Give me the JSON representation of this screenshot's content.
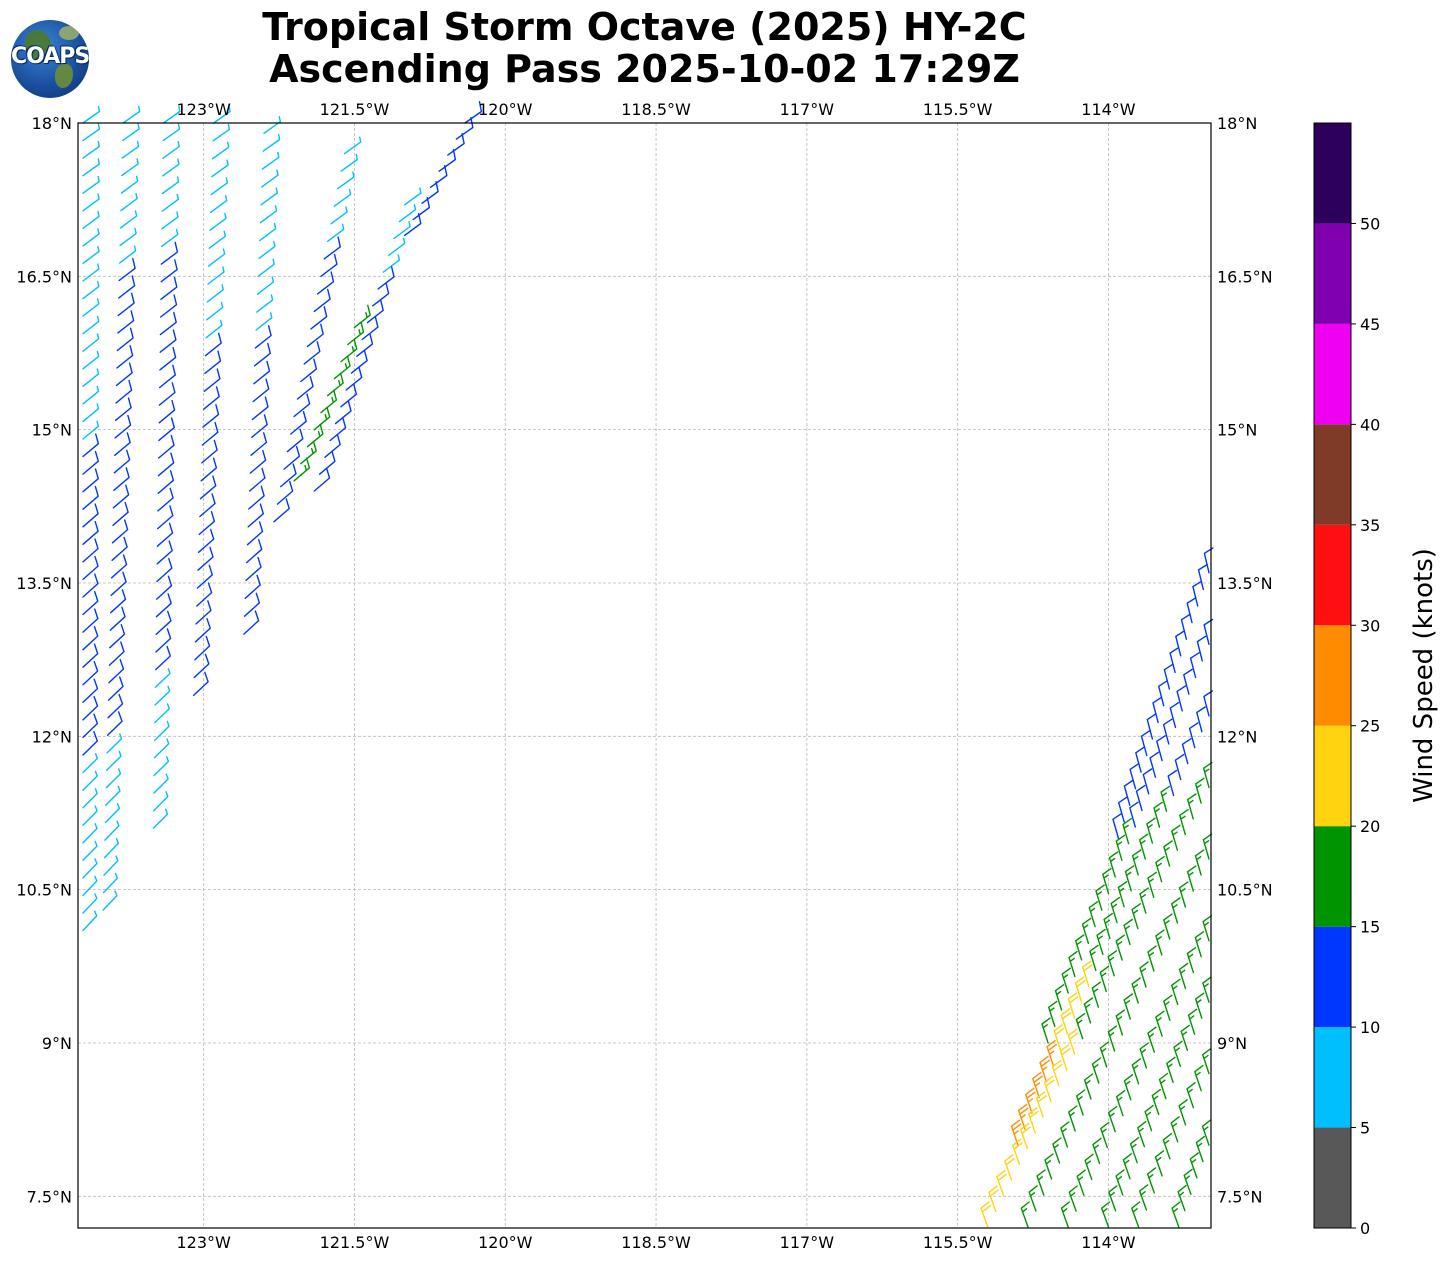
{
  "title": {
    "line1": "Tropical Storm Octave (2025) HY-2C",
    "line2": "Ascending Pass 2025-10-02 17:29Z"
  },
  "logo": {
    "text": "COAPS"
  },
  "map": {
    "lon_range": [
      -124.25,
      -112.98
    ],
    "lat_range": [
      7.19,
      18.0
    ],
    "lon_ticks": [
      {
        "value": -123.0,
        "label": "123°W"
      },
      {
        "value": -121.5,
        "label": "121.5°W"
      },
      {
        "value": -120.0,
        "label": "120°W"
      },
      {
        "value": -118.5,
        "label": "118.5°W"
      },
      {
        "value": -117.0,
        "label": "117°W"
      },
      {
        "value": -115.5,
        "label": "115.5°W"
      },
      {
        "value": -114.0,
        "label": "114°W"
      }
    ],
    "lat_ticks": [
      {
        "value": 18.0,
        "label": "18°N"
      },
      {
        "value": 16.5,
        "label": "16.5°N"
      },
      {
        "value": 15.0,
        "label": "15°N"
      },
      {
        "value": 13.5,
        "label": "13.5°N"
      },
      {
        "value": 12.0,
        "label": "12°N"
      },
      {
        "value": 10.5,
        "label": "10.5°N"
      },
      {
        "value": 9.0,
        "label": "9°N"
      },
      {
        "value": 7.5,
        "label": "7.5°N"
      }
    ],
    "grid": true
  },
  "colorbar": {
    "label": "Wind Speed (knots)",
    "range": [
      0,
      55
    ],
    "bins": [
      {
        "from": 0,
        "to": 5,
        "color": "#585858"
      },
      {
        "from": 5,
        "to": 10,
        "color": "#00bfff"
      },
      {
        "from": 10,
        "to": 15,
        "color": "#0037ff"
      },
      {
        "from": 15,
        "to": 20,
        "color": "#009400"
      },
      {
        "from": 20,
        "to": 25,
        "color": "#ffd30f"
      },
      {
        "from": 25,
        "to": 30,
        "color": "#ff8c00"
      },
      {
        "from": 30,
        "to": 35,
        "color": "#ff0f0f"
      },
      {
        "from": 35,
        "to": 40,
        "color": "#7f3a28"
      },
      {
        "from": 40,
        "to": 45,
        "color": "#f000f0"
      },
      {
        "from": 45,
        "to": 50,
        "color": "#8000b0"
      },
      {
        "from": 50,
        "to": 55,
        "color": "#2e005e"
      }
    ],
    "ticks": [
      "0",
      "5",
      "10",
      "15",
      "20",
      "25",
      "30",
      "35",
      "40",
      "45",
      "50"
    ]
  },
  "chart_data": {
    "type": "scatter",
    "title": "Tropical Storm Octave (2025) HY-2C Ascending Pass 2025-10-02 17:29Z",
    "xlabel": "",
    "ylabel": "",
    "xlim": [
      -124.25,
      -112.98
    ],
    "ylim": [
      7.19,
      18.0
    ],
    "swaths": [
      {
        "region": "northwest",
        "note_units": "lon/lat in degrees, speed in knots, direction in degrees (wind from)",
        "rows": [
          {
            "lat_start": 18.0,
            "lon_start": -124.2,
            "lat_end": 10.1,
            "lon_end": -124.2,
            "speeds_by_segment": [
              8,
              8,
              12,
              12,
              9
            ]
          },
          {
            "lat_start": 18.0,
            "lon_start": -123.8,
            "lat_end": 10.3,
            "lon_end": -124.0,
            "speeds_by_segment": [
              8,
              12,
              12,
              12,
              8
            ]
          },
          {
            "lat_start": 18.0,
            "lon_start": -123.4,
            "lat_end": 11.1,
            "lon_end": -123.5,
            "speeds_by_segment": [
              9,
              13,
              12,
              12,
              8
            ]
          },
          {
            "lat_start": 18.0,
            "lon_start": -122.9,
            "lat_end": 12.4,
            "lon_end": -123.1,
            "speeds_by_segment": [
              9,
              9,
              12,
              13,
              12
            ]
          },
          {
            "lat_start": 17.9,
            "lon_start": -122.4,
            "lat_end": 13.0,
            "lon_end": -122.6,
            "speeds_by_segment": [
              8,
              9,
              12,
              13,
              12
            ]
          },
          {
            "lat_start": 17.7,
            "lon_start": -121.6,
            "lat_end": 14.1,
            "lon_end": -122.3,
            "speeds_by_segment": [
              9,
              12,
              13,
              12
            ]
          },
          {
            "lat_start": 17.2,
            "lon_start": -121.0,
            "lat_end": 14.4,
            "lon_end": -121.9,
            "speeds_by_segment": [
              9,
              12,
              12,
              12
            ]
          },
          {
            "lat_start": 16.0,
            "lon_start": -121.5,
            "lat_end": 14.5,
            "lon_end": -122.1,
            "speeds_by_segment": [
              16,
              16,
              17
            ]
          },
          {
            "lat_start": 18.0,
            "lon_start": -120.4,
            "lat_end": 16.9,
            "lon_end": -121.0,
            "speeds_by_segment": [
              12,
              12,
              11
            ]
          }
        ]
      },
      {
        "region": "southeast",
        "note_units": "lon/lat in degrees, speed in knots, direction in degrees (wind from)",
        "rows": [
          {
            "lat_start": 13.6,
            "lon_start": -113.0,
            "lat_end": 11.0,
            "lon_end": -113.9,
            "speeds_by_segment": [
              12,
              12,
              13
            ]
          },
          {
            "lat_start": 12.9,
            "lon_start": -113.0,
            "lat_end": 9.0,
            "lon_end": -114.6,
            "speeds_by_segment": [
              12,
              13,
              16,
              17
            ]
          },
          {
            "lat_start": 12.2,
            "lon_start": -113.0,
            "lat_end": 8.0,
            "lon_end": -114.9,
            "speeds_by_segment": [
              12,
              17,
              18,
              22,
              27
            ]
          },
          {
            "lat_start": 11.5,
            "lon_start": -113.0,
            "lat_end": 7.2,
            "lon_end": -115.2,
            "speeds_by_segment": [
              17,
              17,
              18,
              22,
              24
            ]
          },
          {
            "lat_start": 10.8,
            "lon_start": -113.0,
            "lat_end": 7.2,
            "lon_end": -114.8,
            "speeds_by_segment": [
              17,
              18,
              18,
              19
            ]
          },
          {
            "lat_start": 10.0,
            "lon_start": -113.0,
            "lat_end": 7.2,
            "lon_end": -114.4,
            "speeds_by_segment": [
              17,
              18,
              17
            ]
          },
          {
            "lat_start": 9.4,
            "lon_start": -113.0,
            "lat_end": 7.2,
            "lon_end": -114.0,
            "speeds_by_segment": [
              17,
              17
            ]
          },
          {
            "lat_start": 8.7,
            "lon_start": -113.0,
            "lat_end": 7.2,
            "lon_end": -113.7,
            "speeds_by_segment": [
              17,
              16
            ]
          },
          {
            "lat_start": 8.0,
            "lon_start": -113.0,
            "lat_end": 7.2,
            "lon_end": -113.3,
            "speeds_by_segment": [
              16
            ]
          }
        ]
      }
    ]
  }
}
